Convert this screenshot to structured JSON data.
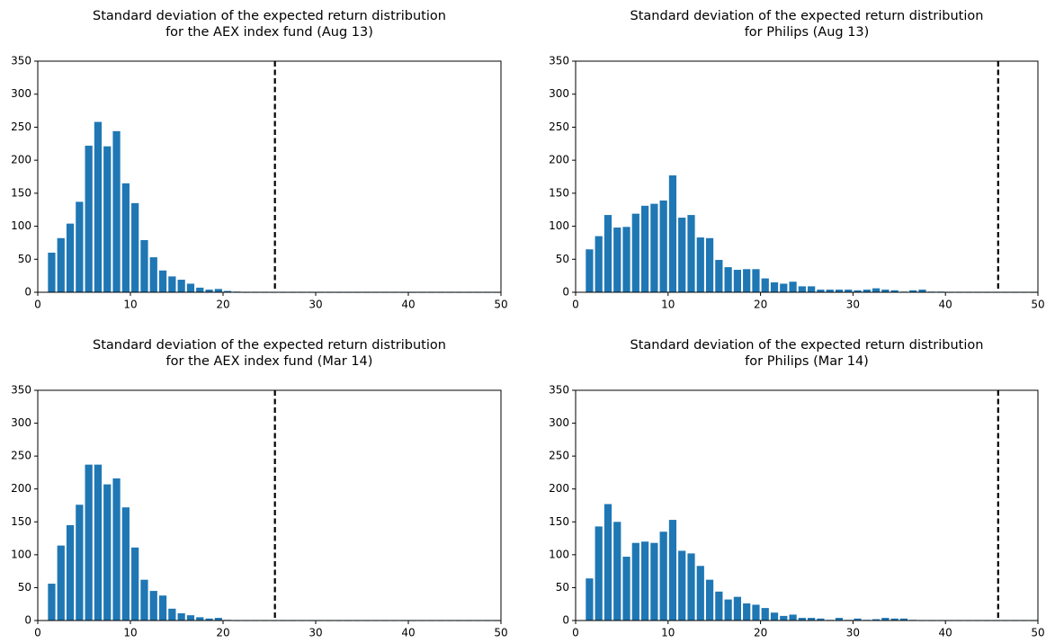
{
  "chart_data": [
    {
      "type": "bar",
      "title": [
        "Standard deviation of the expected return distribution",
        "for the AEX index fund (Aug 13)"
      ],
      "x": [
        1.5,
        2.5,
        3.5,
        4.5,
        5.5,
        6.5,
        7.5,
        8.5,
        9.5,
        10.5,
        11.5,
        12.5,
        13.5,
        14.5,
        15.5,
        16.5,
        17.5,
        18.5,
        19.5,
        20.5,
        21.5,
        22.5,
        23.5,
        24.5,
        25.5,
        26.5,
        27.5,
        28.5,
        29.5,
        30.5,
        31.5,
        32.5,
        33.5,
        34.5,
        35.5,
        36.5,
        37.5,
        38.5,
        39.5,
        40.5,
        41.5,
        42.5,
        43.5,
        44.5,
        45.5,
        46.5,
        47.5,
        48.5,
        49.5
      ],
      "values": [
        60,
        82,
        104,
        137,
        222,
        258,
        221,
        244,
        165,
        135,
        79,
        53,
        33,
        24,
        19,
        13,
        7,
        4,
        5,
        2,
        1,
        0,
        0,
        0,
        0,
        0,
        0,
        0,
        0,
        0,
        0,
        0,
        0,
        0,
        0,
        0,
        0,
        0,
        0,
        0,
        0,
        0,
        0,
        0,
        0,
        0,
        0,
        0,
        0
      ],
      "color": "#1f77b4",
      "vline": 25.6,
      "vline_color": "#000000",
      "xlim": [
        0,
        50
      ],
      "xticks": [
        0,
        10,
        20,
        30,
        40,
        50
      ],
      "ylim": [
        0,
        350
      ],
      "yticks": [
        0,
        50,
        100,
        150,
        200,
        250,
        300,
        350
      ]
    },
    {
      "type": "bar",
      "title": [
        "Standard deviation of the expected return distribution",
        "for Philips (Aug 13)"
      ],
      "x": [
        1.5,
        2.5,
        3.5,
        4.5,
        5.5,
        6.5,
        7.5,
        8.5,
        9.5,
        10.5,
        11.5,
        12.5,
        13.5,
        14.5,
        15.5,
        16.5,
        17.5,
        18.5,
        19.5,
        20.5,
        21.5,
        22.5,
        23.5,
        24.5,
        25.5,
        26.5,
        27.5,
        28.5,
        29.5,
        30.5,
        31.5,
        32.5,
        33.5,
        34.5,
        35.5,
        36.5,
        37.5,
        38.5,
        39.5,
        40.5,
        41.5,
        42.5,
        43.5,
        44.5,
        45.5,
        46.5,
        47.5,
        48.5,
        49.5
      ],
      "values": [
        65,
        85,
        117,
        98,
        99,
        119,
        131,
        134,
        139,
        177,
        113,
        117,
        83,
        82,
        49,
        38,
        34,
        35,
        35,
        21,
        15,
        13,
        16,
        9,
        9,
        4,
        4,
        4,
        4,
        3,
        4,
        6,
        4,
        3,
        1,
        3,
        4,
        1,
        1,
        0,
        0,
        0,
        0,
        0,
        0,
        0,
        0,
        0,
        0
      ],
      "color": "#1f77b4",
      "vline": 45.7,
      "vline_color": "#000000",
      "xlim": [
        0,
        50
      ],
      "xticks": [
        0,
        10,
        20,
        30,
        40,
        50
      ],
      "ylim": [
        0,
        350
      ],
      "yticks": [
        0,
        50,
        100,
        150,
        200,
        250,
        300,
        350
      ]
    },
    {
      "type": "bar",
      "title": [
        "Standard deviation of the expected return distribution",
        "for the AEX index fund (Mar 14)"
      ],
      "x": [
        1.5,
        2.5,
        3.5,
        4.5,
        5.5,
        6.5,
        7.5,
        8.5,
        9.5,
        10.5,
        11.5,
        12.5,
        13.5,
        14.5,
        15.5,
        16.5,
        17.5,
        18.5,
        19.5,
        20.5,
        21.5,
        22.5,
        23.5,
        24.5,
        25.5,
        26.5,
        27.5,
        28.5,
        29.5,
        30.5,
        31.5,
        32.5,
        33.5,
        34.5,
        35.5,
        36.5,
        37.5,
        38.5,
        39.5,
        40.5,
        41.5,
        42.5,
        43.5,
        44.5,
        45.5,
        46.5,
        47.5,
        48.5,
        49.5
      ],
      "values": [
        56,
        114,
        145,
        176,
        237,
        237,
        207,
        216,
        172,
        111,
        62,
        45,
        38,
        18,
        11,
        8,
        5,
        3,
        4,
        1,
        0,
        0,
        0,
        0,
        0,
        0,
        0,
        0,
        0,
        0,
        0,
        0,
        0,
        0,
        0,
        0,
        0,
        0,
        0,
        0,
        0,
        0,
        0,
        0,
        0,
        0,
        0,
        0,
        0
      ],
      "color": "#1f77b4",
      "vline": 25.6,
      "vline_color": "#000000",
      "xlim": [
        0,
        50
      ],
      "xticks": [
        0,
        10,
        20,
        30,
        40,
        50
      ],
      "ylim": [
        0,
        350
      ],
      "yticks": [
        0,
        50,
        100,
        150,
        200,
        250,
        300,
        350
      ]
    },
    {
      "type": "bar",
      "title": [
        "Standard deviation of the expected return distribution",
        "for Philips (Mar 14)"
      ],
      "x": [
        1.5,
        2.5,
        3.5,
        4.5,
        5.5,
        6.5,
        7.5,
        8.5,
        9.5,
        10.5,
        11.5,
        12.5,
        13.5,
        14.5,
        15.5,
        16.5,
        17.5,
        18.5,
        19.5,
        20.5,
        21.5,
        22.5,
        23.5,
        24.5,
        25.5,
        26.5,
        27.5,
        28.5,
        29.5,
        30.5,
        31.5,
        32.5,
        33.5,
        34.5,
        35.5,
        36.5,
        37.5,
        38.5,
        39.5,
        40.5,
        41.5,
        42.5,
        43.5,
        44.5,
        45.5,
        46.5,
        47.5,
        48.5,
        49.5
      ],
      "values": [
        64,
        143,
        177,
        150,
        97,
        118,
        120,
        118,
        135,
        153,
        106,
        102,
        83,
        62,
        44,
        32,
        36,
        26,
        24,
        19,
        12,
        7,
        9,
        4,
        4,
        3,
        1,
        4,
        1,
        3,
        1,
        2,
        4,
        3,
        3,
        1,
        0,
        0,
        0,
        0,
        0,
        0,
        0,
        0,
        0,
        0,
        0,
        0,
        0
      ],
      "color": "#1f77b4",
      "vline": 45.7,
      "vline_color": "#000000",
      "xlim": [
        0,
        50
      ],
      "xticks": [
        0,
        10,
        20,
        30,
        40,
        50
      ],
      "ylim": [
        0,
        350
      ],
      "yticks": [
        0,
        50,
        100,
        150,
        200,
        250,
        300,
        350
      ]
    }
  ]
}
